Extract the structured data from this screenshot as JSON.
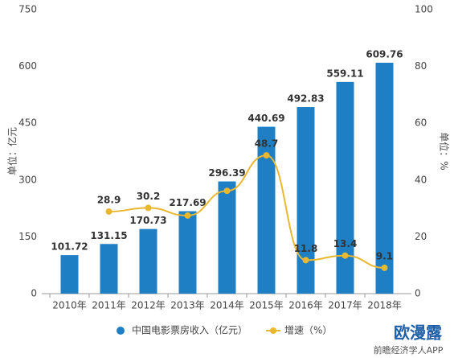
{
  "chart_data": {
    "type": "bar-line",
    "categories": [
      "2010年",
      "2011年",
      "2012年",
      "2013年",
      "2014年",
      "2015年",
      "2016年",
      "2017年",
      "2018年"
    ],
    "series": [
      {
        "name": "中国电影票房收入（亿元）",
        "type": "bar",
        "color": "#1f7fc4",
        "values": [
          101.72,
          131.15,
          170.73,
          217.69,
          296.39,
          440.69,
          492.83,
          559.11,
          609.76
        ]
      },
      {
        "name": "增速（%）",
        "type": "line",
        "axis": "y2",
        "color": "#e9b730",
        "values": [
          null,
          28.9,
          30.2,
          27.5,
          36.2,
          48.7,
          11.8,
          13.4,
          9.1
        ],
        "value_labels": [
          null,
          "28.9",
          "30.2",
          null,
          null,
          "48.7",
          "11.8",
          "13.4",
          "9.1"
        ]
      }
    ],
    "ylabel": "单位：亿元",
    "y2label": "单位：%",
    "ylim": [
      0,
      750
    ],
    "yticks": [
      0,
      150,
      300,
      450,
      600,
      750
    ],
    "y2lim": [
      0,
      100
    ],
    "y2ticks": [
      0,
      20,
      40,
      60,
      80,
      100
    ],
    "watermark": "欧漫露",
    "source": "前瞻经济学人APP"
  }
}
